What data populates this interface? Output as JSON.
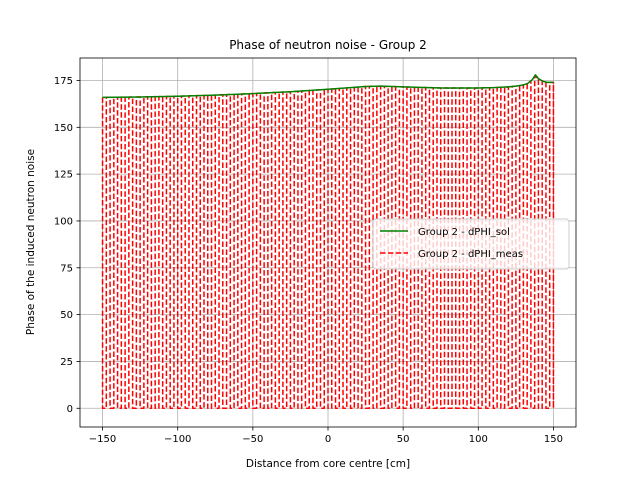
{
  "chart_data": {
    "type": "line",
    "title": "Phase of neutron noise - Group 2",
    "xlabel": "Distance from core centre [cm]",
    "ylabel": "Phase of the induced neutron noise",
    "xlim": [
      -165,
      165
    ],
    "ylim": [
      -10,
      187
    ],
    "xticks": [
      -150,
      -100,
      -50,
      0,
      50,
      100,
      150
    ],
    "yticks": [
      0,
      25,
      50,
      75,
      100,
      125,
      150,
      175
    ],
    "grid": true,
    "legend_position": "center-right",
    "series": [
      {
        "name": "Group 2 - dPHI_sol",
        "color": "#008000",
        "style": "solid",
        "x": [
          -150,
          -125,
          -100,
          -75,
          -50,
          -25,
          0,
          15,
          25,
          35,
          50,
          75,
          100,
          110,
          120,
          125,
          130,
          133,
          136,
          138,
          140,
          143,
          146,
          150
        ],
        "y": [
          166,
          166.2,
          166.6,
          167.2,
          168,
          169,
          170.3,
          171.2,
          171.8,
          172,
          171.6,
          171,
          171,
          171.2,
          171.6,
          172,
          172.6,
          173.5,
          175.5,
          178,
          176,
          174.5,
          174,
          174
        ]
      },
      {
        "name": "Group 2 - dPHI_meas",
        "color": "#ff0000",
        "style": "dashed",
        "envelope_x": [
          -150,
          -125,
          -100,
          -75,
          -50,
          -25,
          0,
          15,
          25,
          35,
          50,
          75,
          100,
          110,
          120,
          125,
          130,
          133,
          136,
          138,
          140,
          143,
          146,
          150
        ],
        "envelope_y": [
          166,
          166.2,
          166.6,
          167.2,
          168,
          169,
          170.3,
          171.2,
          171.8,
          172,
          171.6,
          171,
          171,
          171.2,
          171.6,
          172,
          172.6,
          173.5,
          175.5,
          178,
          176,
          174.5,
          174,
          174
        ],
        "baseline": 0,
        "spikes_x": [
          -150,
          -145,
          -140,
          -135,
          -130,
          -125,
          -120,
          -115,
          -110,
          -105,
          -100,
          -95,
          -90,
          -85,
          -80,
          -75,
          -70,
          -65,
          -60,
          -55,
          -50,
          -45,
          -40,
          -35,
          -30,
          -25,
          -20,
          -15,
          -10,
          -5,
          0,
          5,
          10,
          15,
          20,
          25,
          30,
          35,
          40,
          45,
          50,
          55,
          60,
          65,
          70,
          75,
          80,
          85,
          90,
          95,
          100,
          105,
          110,
          115,
          120,
          125,
          130,
          135,
          140,
          145,
          150
        ]
      }
    ]
  }
}
